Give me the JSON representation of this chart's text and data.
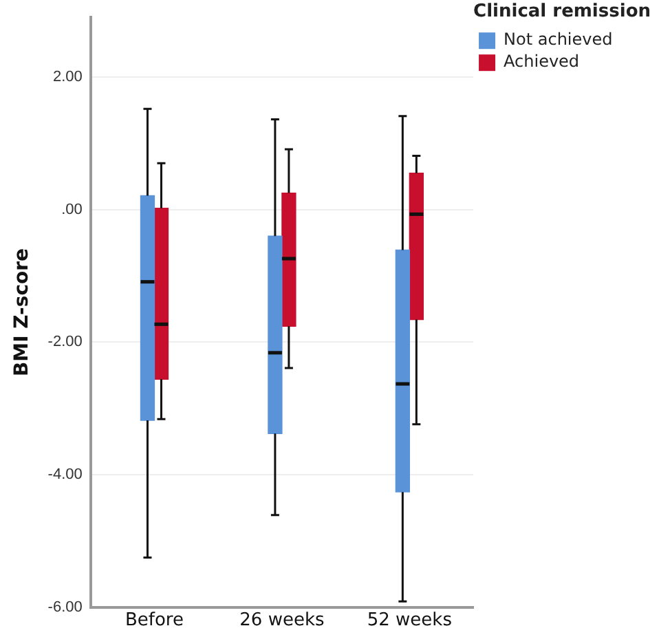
{
  "chart_data": {
    "type": "box",
    "ylabel": "BMI Z-score",
    "legend_title": "Clinical remission",
    "legend": "top right",
    "grid": "y",
    "categories": [
      "Before",
      "26 weeks",
      "52 weeks"
    ],
    "ylim": [
      -6,
      2.9
    ],
    "yticks": [
      {
        "value": 2,
        "label": "2.00"
      },
      {
        "value": 0,
        "label": ".00"
      },
      {
        "value": -2,
        "label": "-2.00"
      },
      {
        "value": -4,
        "label": "-4.00"
      },
      {
        "value": -6,
        "label": "-6.00"
      }
    ],
    "series": [
      {
        "name": "Not achieved",
        "color": "#5b93d9",
        "boxes": [
          {
            "low": -5.25,
            "q1": -3.18,
            "median": -1.09,
            "q3": 0.21,
            "high": 1.52
          },
          {
            "low": -4.61,
            "q1": -3.38,
            "median": -2.16,
            "q3": -0.4,
            "high": 1.36
          },
          {
            "low": -5.91,
            "q1": -4.26,
            "median": -2.63,
            "q3": -0.61,
            "high": 1.41
          }
        ]
      },
      {
        "name": "Achieved",
        "color": "#c8102e",
        "boxes": [
          {
            "low": -3.16,
            "q1": -2.56,
            "median": -1.73,
            "q3": 0.02,
            "high": 0.7
          },
          {
            "low": -2.39,
            "q1": -1.76,
            "median": -0.74,
            "q3": 0.25,
            "high": 0.91
          },
          {
            "low": -3.24,
            "q1": -1.66,
            "median": -0.07,
            "q3": 0.55,
            "high": 0.81
          }
        ]
      }
    ]
  }
}
